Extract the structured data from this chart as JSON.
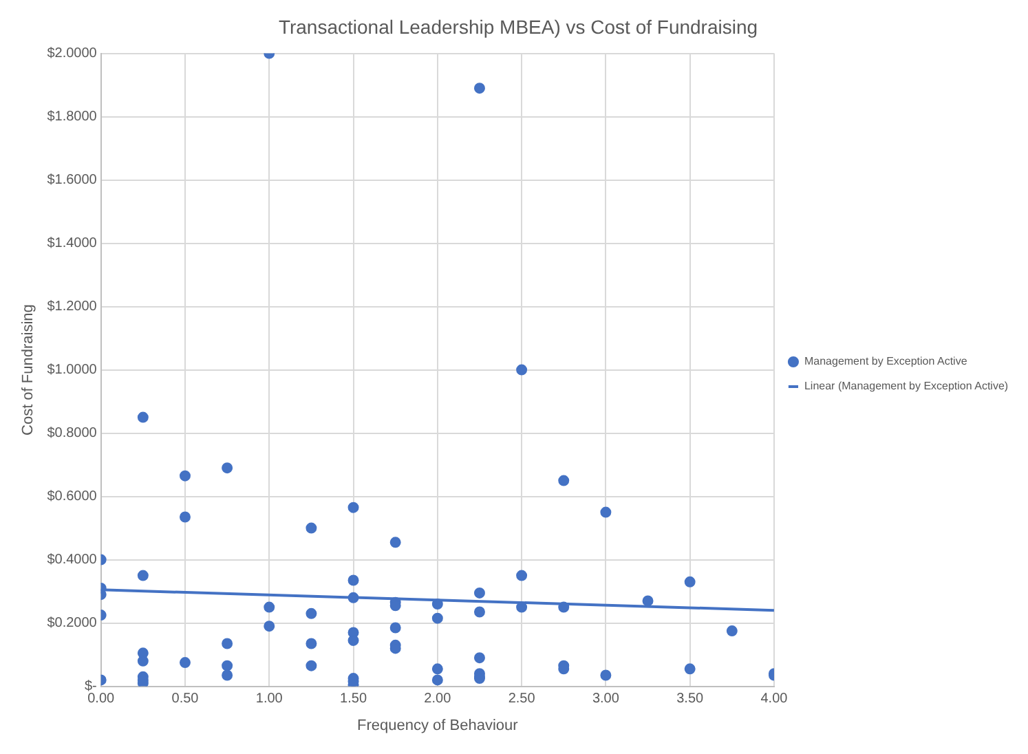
{
  "chart_data": {
    "type": "scatter",
    "title": "Transactional Leadership MBEA) vs Cost of Fundraising",
    "xlabel": "Frequency of Behaviour",
    "ylabel": "Cost of Fundraising",
    "xlim": [
      0,
      4
    ],
    "xticks": [
      {
        "value": 0,
        "label": "0.00"
      },
      {
        "value": 0.5,
        "label": "0.50"
      },
      {
        "value": 1,
        "label": "1.00"
      },
      {
        "value": 1.5,
        "label": "1.50"
      },
      {
        "value": 2,
        "label": "2.00"
      },
      {
        "value": 2.5,
        "label": "2.50"
      },
      {
        "value": 3,
        "label": "3.00"
      },
      {
        "value": 3.5,
        "label": "3.50"
      },
      {
        "value": 4,
        "label": "4.00"
      }
    ],
    "ylim": [
      0,
      2
    ],
    "yticks": [
      {
        "value": 0,
        "label": "$-"
      },
      {
        "value": 0.2,
        "label": "$0.2000"
      },
      {
        "value": 0.4,
        "label": "$0.4000"
      },
      {
        "value": 0.6,
        "label": "$0.6000"
      },
      {
        "value": 0.8,
        "label": "$0.8000"
      },
      {
        "value": 1,
        "label": "$1.0000"
      },
      {
        "value": 1.2,
        "label": "$1.2000"
      },
      {
        "value": 1.4,
        "label": "$1.4000"
      },
      {
        "value": 1.6,
        "label": "$1.6000"
      },
      {
        "value": 1.8,
        "label": "$1.8000"
      },
      {
        "value": 2,
        "label": "$2.0000"
      }
    ],
    "grid": true,
    "legend": "right",
    "marker": "circle",
    "series": [
      {
        "name": "Management by Exception Active",
        "color": "#4472c4",
        "x": [
          0,
          0,
          0,
          0,
          0,
          0.25,
          0.25,
          0.25,
          0.25,
          0.25,
          0.25,
          0.25,
          0.5,
          0.5,
          0.5,
          0.75,
          0.75,
          0.75,
          0.75,
          1,
          1,
          1,
          1.25,
          1.25,
          1.25,
          1.25,
          1.5,
          1.5,
          1.5,
          1.5,
          1.5,
          1.5,
          1.5,
          1.5,
          1.75,
          1.75,
          1.75,
          1.75,
          1.75,
          1.75,
          2,
          2,
          2,
          2,
          2.25,
          2.25,
          2.25,
          2.25,
          2.25,
          2.25,
          2.25,
          2.5,
          2.5,
          2.5,
          2.75,
          2.75,
          2.75,
          2.75,
          3,
          3,
          3.25,
          3.5,
          3.5,
          3.75,
          4,
          4
        ],
        "values": [
          0.4,
          0.31,
          0.29,
          0.225,
          0.02,
          0.85,
          0.35,
          0.105,
          0.08,
          0.03,
          0.02,
          0.01,
          0.665,
          0.535,
          0.075,
          0.69,
          0.135,
          0.065,
          0.035,
          2.0,
          0.25,
          0.19,
          0.5,
          0.23,
          0.135,
          0.065,
          0.565,
          0.335,
          0.28,
          0.17,
          0.145,
          0.025,
          0.015,
          0.005,
          0.455,
          0.265,
          0.255,
          0.185,
          0.13,
          0.12,
          0.26,
          0.215,
          0.055,
          0.02,
          1.89,
          0.295,
          0.235,
          0.09,
          0.04,
          0.03,
          0.025,
          1.0,
          0.35,
          0.25,
          0.65,
          0.25,
          0.065,
          0.055,
          0.55,
          0.035,
          0.27,
          0.33,
          0.055,
          0.175,
          0.04,
          0.035
        ]
      },
      {
        "name": "Linear (Management by Exception Active)",
        "color": "#4472c4",
        "type": "line",
        "marker": "none",
        "x": [
          0,
          4
        ],
        "values": [
          0.305,
          0.24
        ]
      }
    ]
  }
}
